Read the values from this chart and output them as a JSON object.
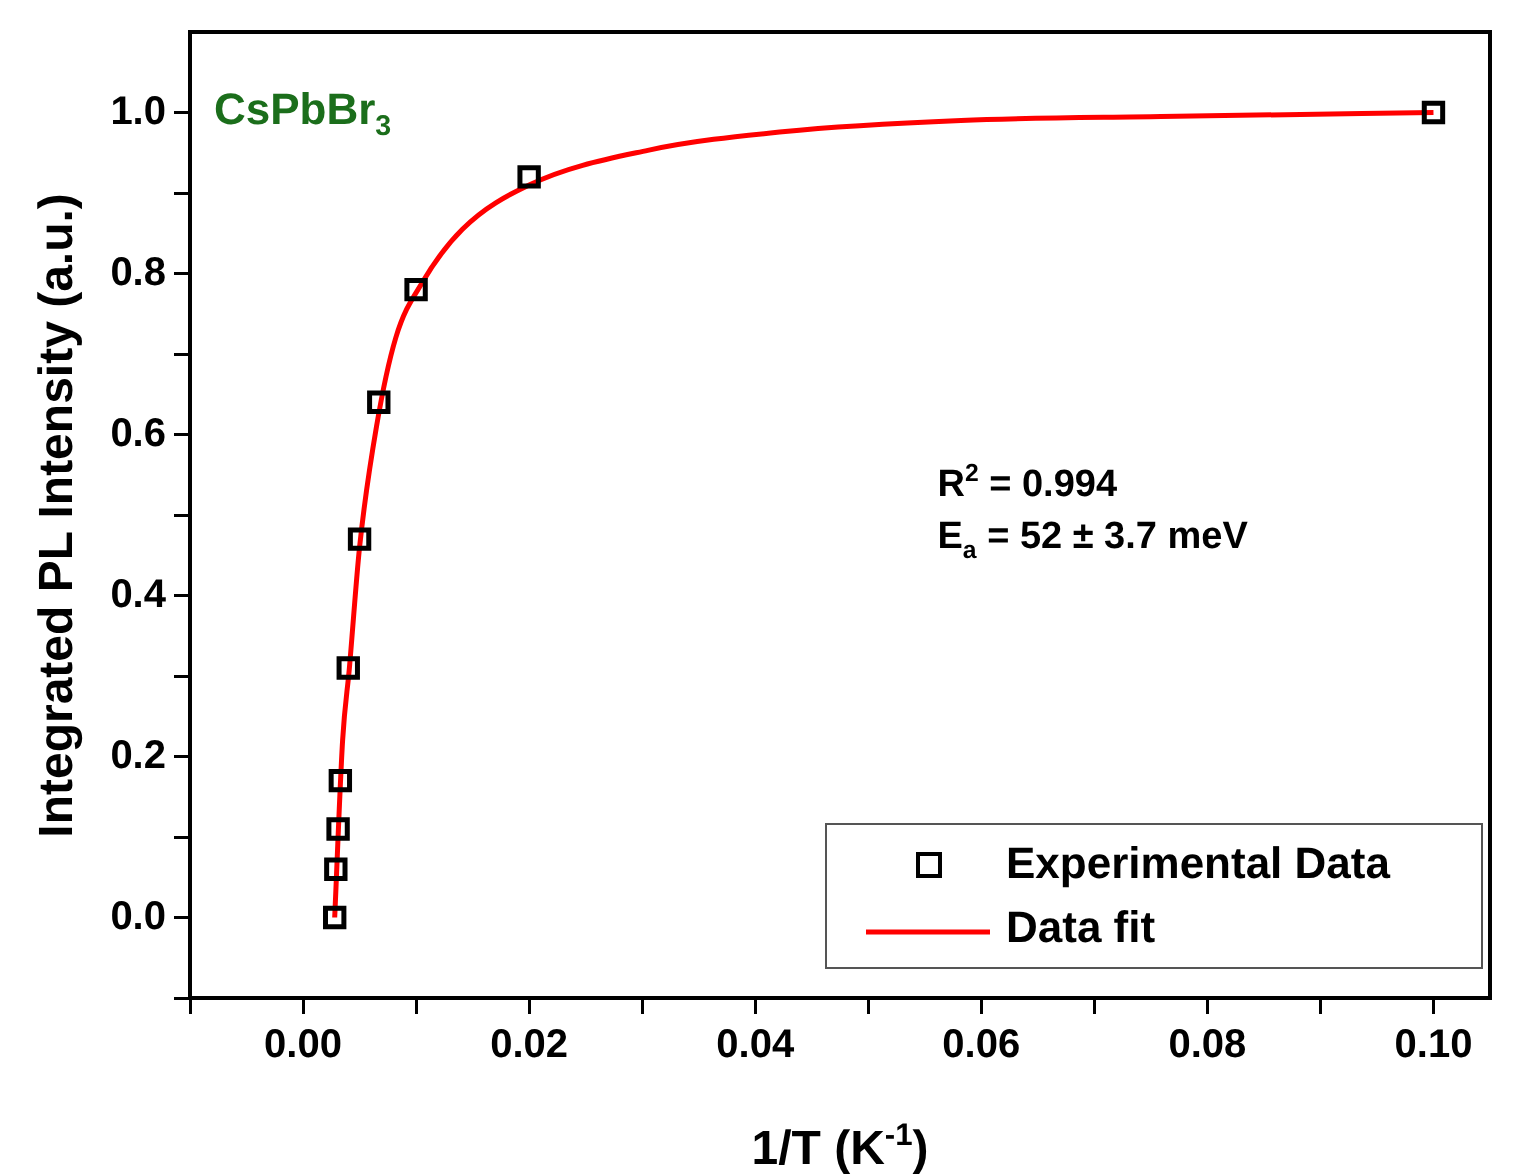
{
  "chart_data": {
    "type": "scatter",
    "title": "CsPbBr$_{3}$",
    "xlabel": "1/T (K$^{-1}$)",
    "ylabel": "Integrated PL Intensity (a.u.)",
    "annotations": [
      "R$^{2}$ = 0.994",
      "E$_{a}$ = 52 ± 3.7 meV"
    ],
    "series": [
      {
        "name": "Experimental Data",
        "type": "scatter",
        "marker": "square",
        "color": "#000000",
        "x": [
          0.0028,
          0.0029,
          0.0031,
          0.0033,
          0.004,
          0.005,
          0.0067,
          0.01,
          0.02,
          0.1
        ],
        "values": [
          0.0,
          0.06,
          0.11,
          0.17,
          0.31,
          0.47,
          0.64,
          0.78,
          0.92,
          1.0
        ]
      },
      {
        "name": "Data fit",
        "type": "line",
        "marker": "none",
        "line_style": "solid",
        "color": "#ff0000",
        "x": [
          0.0028,
          0.0035,
          0.0041,
          0.005,
          0.0065,
          0.0082,
          0.0106,
          0.0141,
          0.02,
          0.0305,
          0.0424,
          0.0582,
          0.0759,
          0.1
        ],
        "values": [
          0.0,
          0.22,
          0.31,
          0.46,
          0.61,
          0.72,
          0.79,
          0.855,
          0.91,
          0.953,
          0.976,
          0.99,
          0.995,
          1.0
        ]
      }
    ],
    "xlim": [
      -0.01,
      0.105
    ],
    "ylim": [
      -0.1,
      1.1
    ],
    "xticks": [
      {
        "value": -0.01,
        "label": null
      },
      {
        "value": 0,
        "label": "0.00"
      },
      {
        "value": 0.01,
        "label": null
      },
      {
        "value": 0.02,
        "label": "0.02"
      },
      {
        "value": 0.03,
        "label": null
      },
      {
        "value": 0.04,
        "label": "0.04"
      },
      {
        "value": 0.05,
        "label": null
      },
      {
        "value": 0.06,
        "label": "0.06"
      },
      {
        "value": 0.07,
        "label": null
      },
      {
        "value": 0.08,
        "label": "0.08"
      },
      {
        "value": 0.09,
        "label": null
      },
      {
        "value": 0.1,
        "label": "0.10"
      }
    ],
    "yticks": [
      {
        "value": -0.1,
        "label": null
      },
      {
        "value": 0,
        "label": "0.0"
      },
      {
        "value": 0.1,
        "label": null
      },
      {
        "value": 0.2,
        "label": "0.2"
      },
      {
        "value": 0.3,
        "label": null
      },
      {
        "value": 0.4,
        "label": "0.4"
      },
      {
        "value": 0.5,
        "label": null
      },
      {
        "value": 0.6,
        "label": "0.6"
      },
      {
        "value": 0.7,
        "label": null
      },
      {
        "value": 0.8,
        "label": "0.8"
      },
      {
        "value": 0.9,
        "label": null
      },
      {
        "value": 1.0,
        "label": "1.0"
      }
    ],
    "grid": false,
    "legend": "bottom right"
  }
}
